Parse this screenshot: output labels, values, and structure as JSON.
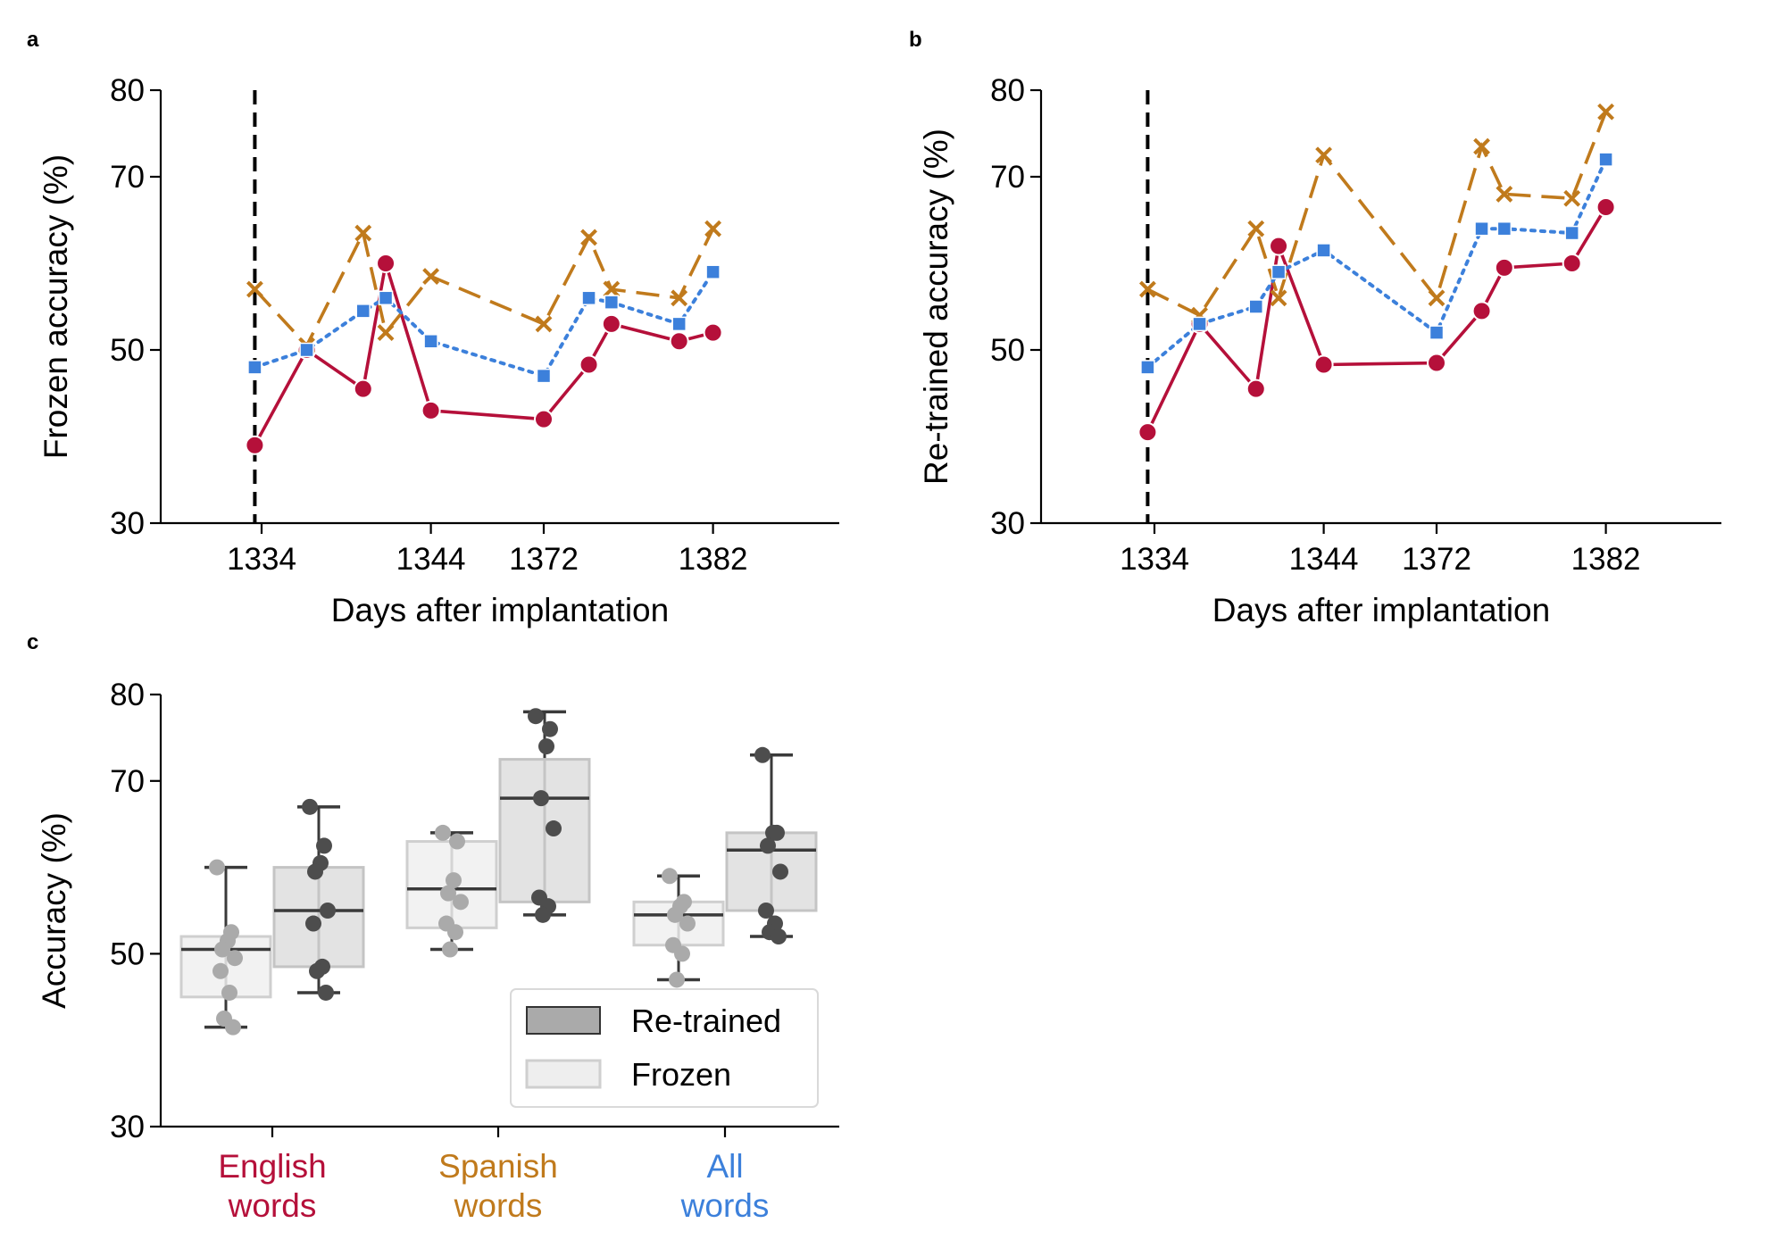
{
  "chart_data": [
    {
      "panel": "a",
      "type": "line",
      "xlabel": "Days after implantation",
      "ylabel": "Frozen accuracy (%)",
      "ylim": [
        30,
        80
      ],
      "yticks": [
        30,
        50,
        70,
        80
      ],
      "xticks": [
        "1334",
        "1344",
        "1372",
        "1382"
      ],
      "vline_day": "1333",
      "grid": false,
      "series": [
        {
          "key": "english",
          "color": "#b5103a",
          "style": "solid",
          "marker": "circle",
          "points": [
            [
              1333,
              39
            ],
            [
              1335,
              50
            ],
            [
              1337,
              45.5
            ],
            [
              1338,
              60
            ],
            [
              1344,
              43
            ],
            [
              1372,
              42
            ],
            [
              1374,
              48.3
            ],
            [
              1375,
              53
            ],
            [
              1379,
              51
            ],
            [
              1381,
              52
            ]
          ]
        },
        {
          "key": "spanish",
          "color": "#c07a1c",
          "style": "dashed",
          "marker": "x",
          "points": [
            [
              1333,
              57
            ],
            [
              1335,
              50.5
            ],
            [
              1337,
              63.5
            ],
            [
              1338,
              52
            ],
            [
              1344,
              58.5
            ],
            [
              1372,
              53
            ],
            [
              1374,
              63
            ],
            [
              1375,
              57
            ],
            [
              1379,
              56
            ],
            [
              1381,
              64
            ]
          ]
        },
        {
          "key": "all",
          "color": "#3c80db",
          "style": "dotted",
          "marker": "square",
          "points": [
            [
              1333,
              48
            ],
            [
              1335,
              50
            ],
            [
              1337,
              54.5
            ],
            [
              1338,
              56
            ],
            [
              1344,
              51
            ],
            [
              1372,
              47
            ],
            [
              1374,
              56
            ],
            [
              1375,
              55.5
            ],
            [
              1379,
              53
            ],
            [
              1381,
              59
            ]
          ]
        }
      ]
    },
    {
      "panel": "b",
      "type": "line",
      "xlabel": "Days after implantation",
      "ylabel": "Re-trained accuracy (%)",
      "ylim": [
        30,
        80
      ],
      "yticks": [
        30,
        50,
        70,
        80
      ],
      "xticks": [
        "1334",
        "1344",
        "1372",
        "1382"
      ],
      "vline_day": "1333",
      "grid": false,
      "series": [
        {
          "key": "english",
          "color": "#b5103a",
          "style": "solid",
          "marker": "circle",
          "points": [
            [
              1333,
              40.5
            ],
            [
              1335,
              53
            ],
            [
              1337,
              45.5
            ],
            [
              1338,
              62
            ],
            [
              1344,
              48.3
            ],
            [
              1372,
              48.5
            ],
            [
              1374,
              54.5
            ],
            [
              1375,
              59.5
            ],
            [
              1379,
              60
            ],
            [
              1381,
              66.5
            ]
          ]
        },
        {
          "key": "spanish",
          "color": "#c07a1c",
          "style": "dashed",
          "marker": "x",
          "points": [
            [
              1333,
              57
            ],
            [
              1335,
              54
            ],
            [
              1337,
              64
            ],
            [
              1338,
              56
            ],
            [
              1344,
              72.5
            ],
            [
              1372,
              56
            ],
            [
              1374,
              73.5
            ],
            [
              1375,
              68
            ],
            [
              1379,
              67.5
            ],
            [
              1381,
              77.5
            ]
          ]
        },
        {
          "key": "all",
          "color": "#3c80db",
          "style": "dotted",
          "marker": "square",
          "points": [
            [
              1333,
              48
            ],
            [
              1335,
              53
            ],
            [
              1337,
              55
            ],
            [
              1338,
              59
            ],
            [
              1344,
              61.5
            ],
            [
              1372,
              52
            ],
            [
              1374,
              64
            ],
            [
              1375,
              64
            ],
            [
              1379,
              63.5
            ],
            [
              1381,
              72
            ]
          ]
        }
      ]
    },
    {
      "panel": "c",
      "type": "box",
      "ylabel": "Accuracy (%)",
      "ylim": [
        30,
        80
      ],
      "yticks": [
        30,
        50,
        70,
        80
      ],
      "grid": false,
      "legend": {
        "position": "bottom-right",
        "entries": [
          {
            "key": "retrained",
            "label": "Re-trained"
          },
          {
            "key": "frozen",
            "label": "Frozen"
          }
        ]
      },
      "groups": [
        {
          "line1": "English",
          "line2": "words",
          "color": "#b5103a",
          "frozen": {
            "whislo": 41.5,
            "q1": 45,
            "median": 50.5,
            "q3": 52,
            "whishi": 60,
            "points": [
              60,
              52.5,
              51.5,
              50.5,
              49.5,
              48,
              45.5,
              42.5,
              41.5
            ]
          },
          "retrained": {
            "whislo": 45.5,
            "q1": 48.5,
            "median": 55,
            "q3": 60,
            "whishi": 67,
            "points": [
              67,
              62.5,
              60.5,
              59.5,
              55,
              53.5,
              48.5,
              48,
              45.5
            ]
          }
        },
        {
          "line1": "Spanish",
          "line2": "words",
          "color": "#c07a1c",
          "frozen": {
            "whislo": 50.5,
            "q1": 53,
            "median": 57.5,
            "q3": 63,
            "whishi": 64,
            "points": [
              64,
              63,
              58.5,
              57,
              56,
              53.5,
              52.5,
              50.5
            ]
          },
          "retrained": {
            "whislo": 54.5,
            "q1": 56,
            "median": 68,
            "q3": 72.5,
            "whishi": 78,
            "points": [
              77.5,
              76,
              74,
              68,
              64.5,
              56.5,
              55.5,
              54.5
            ]
          }
        },
        {
          "line1": "All",
          "line2": "words",
          "color": "#3c80db",
          "frozen": {
            "whislo": 47,
            "q1": 51,
            "median": 54.5,
            "q3": 56,
            "whishi": 59,
            "points": [
              59,
              56,
              55.5,
              54.5,
              53.5,
              51,
              50,
              47
            ]
          },
          "retrained": {
            "whislo": 52,
            "q1": 55,
            "median": 62,
            "q3": 64,
            "whishi": 73,
            "points": [
              73,
              64,
              64,
              62.5,
              59.5,
              55,
              53.5,
              52.5,
              52
            ]
          }
        }
      ]
    }
  ]
}
